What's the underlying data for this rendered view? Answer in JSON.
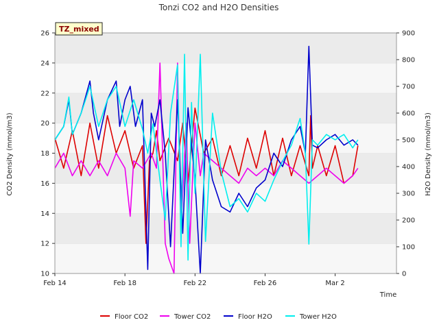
{
  "chart_data": {
    "type": "line",
    "title": "Tonzi CO2 and H2O Densities",
    "badge": "TZ_mixed",
    "xlabel": "Time",
    "ylabel_left": "CO2 Density (mmol/m3)",
    "ylabel_right": "H2O Density (mmol/m3)",
    "x_range_days": [
      0,
      19.5
    ],
    "x_ticks": [
      {
        "label": "Feb 14",
        "day": 0
      },
      {
        "label": "Feb 18",
        "day": 4
      },
      {
        "label": "Feb 22",
        "day": 8
      },
      {
        "label": "Feb 26",
        "day": 12
      },
      {
        "label": "Mar 2",
        "day": 16
      }
    ],
    "ylim_left": [
      10,
      26
    ],
    "yticks_left": [
      10,
      12,
      14,
      16,
      18,
      20,
      22,
      24,
      26
    ],
    "ylim_right": [
      0,
      900
    ],
    "yticks_right": [
      0,
      100,
      200,
      300,
      400,
      500,
      600,
      700,
      800,
      900
    ],
    "grid": "horizontal bands",
    "legend_position": "bottom",
    "series": [
      {
        "name": "Floor CO2",
        "axis": "left",
        "color": "#dd0000",
        "x": [
          0,
          0.5,
          1,
          1.5,
          2,
          2.5,
          3,
          3.5,
          4,
          4.5,
          5,
          5.2,
          5.4,
          5.6,
          5.8,
          6,
          6.5,
          7,
          7.3,
          7.6,
          8,
          8.5,
          9,
          9.5,
          10,
          10.5,
          11,
          11.5,
          12,
          12.5,
          13,
          13.5,
          14,
          14.5,
          14.6,
          14.7,
          15,
          15.5,
          16,
          16.5,
          17,
          17.3
        ],
        "values": [
          19,
          17,
          19.5,
          16.5,
          20,
          17,
          20.5,
          18,
          19.5,
          17,
          18.5,
          12,
          17.5,
          18,
          19.5,
          17.5,
          19,
          17.5,
          20,
          16,
          21,
          18,
          19,
          16.5,
          18.5,
          16.5,
          19,
          17,
          19.5,
          16.5,
          19,
          16.5,
          18.5,
          16.5,
          20.5,
          17,
          18.5,
          16.5,
          18.5,
          16,
          16.5,
          18.5
        ]
      },
      {
        "name": "Tower CO2",
        "axis": "left",
        "color": "#ee00ee",
        "x": [
          0,
          0.5,
          1,
          1.5,
          2,
          2.5,
          3,
          3.5,
          4,
          4.3,
          4.5,
          5,
          5.5,
          5.8,
          6,
          6.3,
          6.5,
          6.8,
          7,
          7.2,
          7.5,
          7.7,
          8,
          8.3,
          8.5,
          9,
          9.5,
          10,
          10.5,
          11,
          11.5,
          12,
          12.5,
          13,
          13.5,
          14,
          14.5,
          15,
          15.5,
          16,
          16.5,
          17,
          17.3
        ],
        "values": [
          17,
          18,
          16.5,
          17.5,
          16.5,
          17.5,
          16.5,
          18,
          17,
          13.8,
          17.5,
          17,
          18,
          17,
          24,
          12,
          11,
          10,
          24,
          13,
          20,
          12,
          20,
          16.5,
          18,
          17.5,
          17,
          16.5,
          16,
          17,
          16.5,
          17,
          16.5,
          17.5,
          17,
          16.5,
          16,
          16.5,
          17,
          16.5,
          16,
          16.5,
          17
        ]
      },
      {
        "name": "Floor H2O",
        "axis": "right",
        "color": "#0000cc",
        "x": [
          0,
          0.5,
          0.8,
          1,
          1.5,
          2,
          2.2,
          2.5,
          3,
          3.5,
          3.7,
          4,
          4.3,
          4.6,
          5,
          5.3,
          5.5,
          5.7,
          6,
          6.3,
          6.6,
          7,
          7.3,
          7.6,
          8,
          8.3,
          8.6,
          9,
          9.5,
          10,
          10.5,
          11,
          11.5,
          12,
          12.5,
          13,
          13.5,
          14,
          14.3,
          14.5,
          14.7,
          15,
          15.5,
          16,
          16.5,
          17,
          17.3
        ],
        "values": [
          500,
          550,
          650,
          520,
          600,
          720,
          600,
          500,
          650,
          720,
          550,
          650,
          700,
          550,
          650,
          15,
          600,
          550,
          650,
          450,
          100,
          650,
          150,
          620,
          350,
          0,
          500,
          350,
          250,
          230,
          300,
          250,
          320,
          350,
          450,
          400,
          500,
          550,
          450,
          850,
          480,
          470,
          500,
          520,
          480,
          500,
          480
        ]
      },
      {
        "name": "Tower H2O",
        "axis": "right",
        "color": "#00eeee",
        "x": [
          0,
          0.5,
          0.8,
          1,
          1.5,
          2,
          2.5,
          3,
          3.5,
          4,
          4.5,
          5,
          5.3,
          5.6,
          6,
          6.3,
          6.6,
          7,
          7.2,
          7.4,
          7.6,
          7.8,
          8,
          8.3,
          8.6,
          9,
          9.5,
          10,
          10.5,
          11,
          11.5,
          12,
          12.5,
          13,
          13.5,
          14,
          14.3,
          14.5,
          14.7,
          15,
          15.5,
          16,
          16.5,
          17,
          17.3
        ],
        "values": [
          500,
          550,
          660,
          520,
          600,
          700,
          550,
          650,
          700,
          550,
          650,
          540,
          450,
          560,
          350,
          200,
          600,
          780,
          100,
          820,
          50,
          640,
          300,
          820,
          120,
          600,
          380,
          250,
          280,
          230,
          300,
          270,
          350,
          420,
          480,
          580,
          450,
          110,
          500,
          480,
          520,
          500,
          520,
          470,
          500
        ]
      }
    ]
  }
}
